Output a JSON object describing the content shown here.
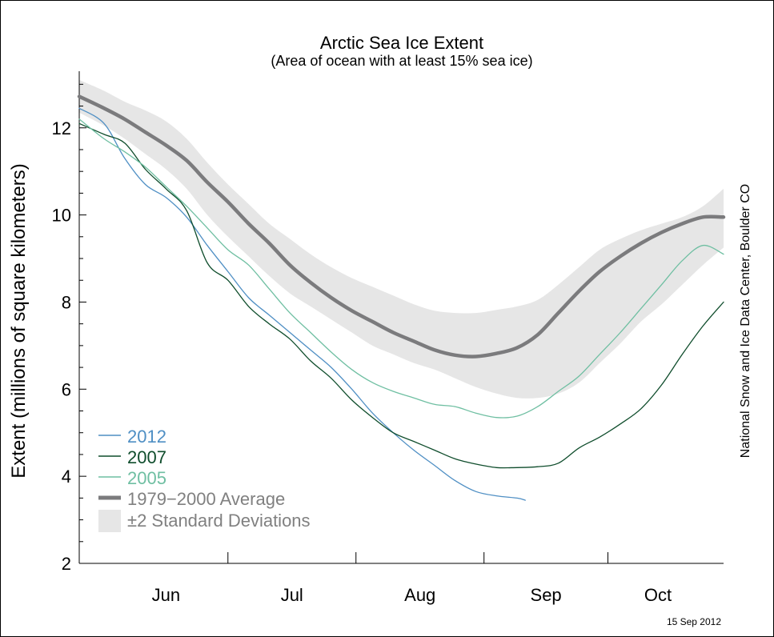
{
  "chart_data": {
    "type": "line",
    "title": "Arctic Sea Ice Extent",
    "subtitle": "(Area of ocean with at least 15% sea ice)",
    "ylabel": "Extent (millions of square kilometers)",
    "xlabel": "",
    "credit": "National Snow and Ice Data Center, Boulder CO",
    "date_stamp": "15 Sep 2012",
    "ylim": [
      2,
      13.3
    ],
    "xlim": [
      "2012-05-26",
      "2012-10-29"
    ],
    "x_tick_labels": [
      "Jun",
      "Jul",
      "Aug",
      "Sep",
      "Oct"
    ],
    "y_tick_labels": [
      "2",
      "4",
      "6",
      "8",
      "10",
      "12"
    ],
    "grid": false,
    "legend_position": "bottom-left",
    "colors": {
      "2012": "#4f8fc4",
      "2007": "#0f4d2c",
      "2005": "#6fbfa2",
      "average": "#7b7b7d",
      "band": "#e6e6e6"
    },
    "band": {
      "name": "±2 Standard Deviations",
      "x": [
        "2012-05-26",
        "2012-06-01",
        "2012-06-06",
        "2012-06-11",
        "2012-06-16",
        "2012-06-21",
        "2012-06-26",
        "2012-07-01",
        "2012-07-06",
        "2012-07-11",
        "2012-07-16",
        "2012-07-21",
        "2012-07-26",
        "2012-07-31",
        "2012-08-05",
        "2012-08-10",
        "2012-08-15",
        "2012-08-20",
        "2012-08-25",
        "2012-08-30",
        "2012-09-04",
        "2012-09-09",
        "2012-09-14",
        "2012-09-19",
        "2012-09-24",
        "2012-09-29",
        "2012-10-04",
        "2012-10-09",
        "2012-10-14",
        "2012-10-19",
        "2012-10-24",
        "2012-10-29"
      ],
      "upper": [
        13.1,
        12.85,
        12.6,
        12.4,
        12.15,
        11.75,
        11.2,
        10.7,
        10.25,
        9.8,
        9.45,
        9.1,
        8.8,
        8.55,
        8.35,
        8.15,
        7.95,
        7.8,
        7.75,
        7.75,
        7.82,
        7.9,
        8.05,
        8.4,
        8.8,
        9.2,
        9.45,
        9.65,
        9.8,
        9.95,
        10.2,
        10.6
      ],
      "lower": [
        12.35,
        12.05,
        11.75,
        11.4,
        11.05,
        10.6,
        10.0,
        9.5,
        9.05,
        8.6,
        8.2,
        7.9,
        7.6,
        7.3,
        7.0,
        6.8,
        6.6,
        6.45,
        6.25,
        6.05,
        5.9,
        5.8,
        5.8,
        5.9,
        6.15,
        6.6,
        7.05,
        7.55,
        7.95,
        8.4,
        8.85,
        9.25
      ]
    },
    "series": [
      {
        "name": "2012",
        "x": [
          "2012-05-26",
          "2012-06-01",
          "2012-06-06",
          "2012-06-11",
          "2012-06-16",
          "2012-06-21",
          "2012-06-26",
          "2012-07-01",
          "2012-07-06",
          "2012-07-11",
          "2012-07-16",
          "2012-07-21",
          "2012-07-26",
          "2012-07-31",
          "2012-08-05",
          "2012-08-10",
          "2012-08-15",
          "2012-08-20",
          "2012-08-25",
          "2012-08-30",
          "2012-09-04",
          "2012-09-09",
          "2012-09-11"
        ],
        "values": [
          12.45,
          12.1,
          11.3,
          10.7,
          10.4,
          9.95,
          9.3,
          8.7,
          8.1,
          7.7,
          7.3,
          6.9,
          6.5,
          6.0,
          5.45,
          5.0,
          4.6,
          4.25,
          3.9,
          3.65,
          3.55,
          3.5,
          3.45
        ]
      },
      {
        "name": "2007",
        "x": [
          "2012-05-26",
          "2012-06-01",
          "2012-06-06",
          "2012-06-11",
          "2012-06-16",
          "2012-06-21",
          "2012-06-26",
          "2012-07-01",
          "2012-07-06",
          "2012-07-11",
          "2012-07-16",
          "2012-07-21",
          "2012-07-26",
          "2012-07-31",
          "2012-08-05",
          "2012-08-10",
          "2012-08-15",
          "2012-08-20",
          "2012-08-25",
          "2012-08-30",
          "2012-09-04",
          "2012-09-09",
          "2012-09-14",
          "2012-09-19",
          "2012-09-24",
          "2012-09-29",
          "2012-10-04",
          "2012-10-09",
          "2012-10-14",
          "2012-10-19",
          "2012-10-24",
          "2012-10-29"
        ],
        "values": [
          12.1,
          11.85,
          11.65,
          11.05,
          10.6,
          10.1,
          8.9,
          8.5,
          7.9,
          7.5,
          7.15,
          6.65,
          6.25,
          5.75,
          5.35,
          5.0,
          4.8,
          4.6,
          4.4,
          4.28,
          4.2,
          4.2,
          4.22,
          4.3,
          4.65,
          4.9,
          5.2,
          5.55,
          6.1,
          6.8,
          7.45,
          8.0
        ]
      },
      {
        "name": "2005",
        "x": [
          "2012-05-26",
          "2012-06-01",
          "2012-06-06",
          "2012-06-11",
          "2012-06-16",
          "2012-06-21",
          "2012-06-26",
          "2012-07-01",
          "2012-07-06",
          "2012-07-11",
          "2012-07-16",
          "2012-07-21",
          "2012-07-26",
          "2012-07-31",
          "2012-08-05",
          "2012-08-10",
          "2012-08-15",
          "2012-08-20",
          "2012-08-25",
          "2012-08-30",
          "2012-09-04",
          "2012-09-09",
          "2012-09-14",
          "2012-09-19",
          "2012-09-24",
          "2012-09-29",
          "2012-10-04",
          "2012-10-09",
          "2012-10-14",
          "2012-10-19",
          "2012-10-24",
          "2012-10-29"
        ],
        "values": [
          12.2,
          11.75,
          11.45,
          11.1,
          10.65,
          10.2,
          9.7,
          9.2,
          8.85,
          8.3,
          7.75,
          7.3,
          6.85,
          6.45,
          6.15,
          5.95,
          5.8,
          5.65,
          5.6,
          5.45,
          5.35,
          5.38,
          5.6,
          5.95,
          6.3,
          6.8,
          7.3,
          7.85,
          8.4,
          8.95,
          9.3,
          9.1
        ]
      },
      {
        "name": "1979−2000 Average",
        "x": [
          "2012-05-26",
          "2012-06-01",
          "2012-06-06",
          "2012-06-11",
          "2012-06-16",
          "2012-06-21",
          "2012-06-26",
          "2012-07-01",
          "2012-07-06",
          "2012-07-11",
          "2012-07-16",
          "2012-07-21",
          "2012-07-26",
          "2012-07-31",
          "2012-08-05",
          "2012-08-10",
          "2012-08-15",
          "2012-08-20",
          "2012-08-25",
          "2012-08-30",
          "2012-09-04",
          "2012-09-09",
          "2012-09-14",
          "2012-09-19",
          "2012-09-24",
          "2012-09-29",
          "2012-10-04",
          "2012-10-09",
          "2012-10-14",
          "2012-10-19",
          "2012-10-24",
          "2012-10-29"
        ],
        "values": [
          12.72,
          12.45,
          12.2,
          11.9,
          11.6,
          11.25,
          10.75,
          10.3,
          9.8,
          9.35,
          8.85,
          8.45,
          8.1,
          7.8,
          7.55,
          7.3,
          7.1,
          6.9,
          6.78,
          6.75,
          6.82,
          6.95,
          7.25,
          7.75,
          8.25,
          8.7,
          9.05,
          9.35,
          9.6,
          9.8,
          9.95,
          9.95
        ]
      }
    ]
  }
}
